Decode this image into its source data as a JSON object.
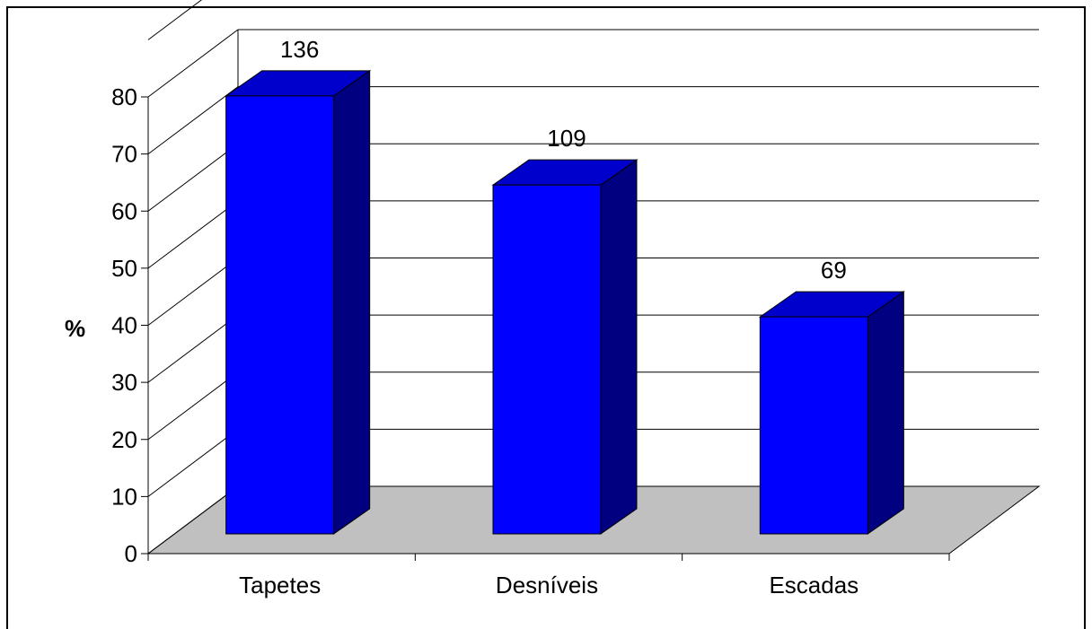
{
  "chart_data": {
    "type": "bar",
    "style": "3d-column",
    "title": "",
    "xlabel": "",
    "ylabel": "%",
    "ylim": [
      0,
      80
    ],
    "yticks": [
      0,
      10,
      20,
      30,
      40,
      50,
      60,
      70,
      80
    ],
    "grid": true,
    "legend": "none",
    "categories": [
      "Tapetes",
      "Desníveis",
      "Escadas"
    ],
    "values": [
      78.6,
      63.0,
      39.9
    ],
    "data_labels": [
      "136",
      "109",
      "69"
    ],
    "colors": {
      "bar_front": "#0000FF",
      "bar_top": "#0000CC",
      "bar_side": "#000080",
      "floor": "#C0C0C0"
    }
  }
}
